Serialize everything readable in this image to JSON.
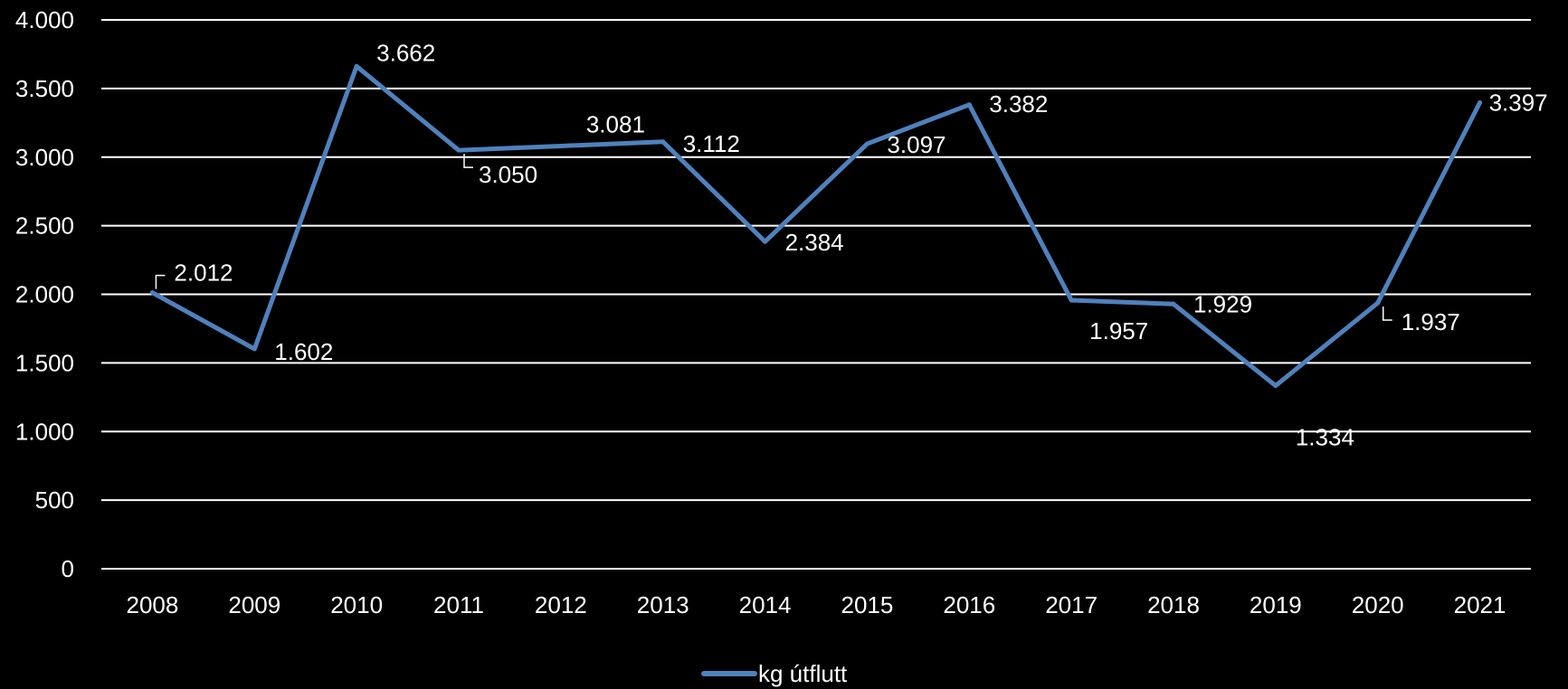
{
  "chart_data": {
    "type": "line",
    "title": "",
    "xlabel": "",
    "ylabel": "",
    "categories": [
      "2008",
      "2009",
      "2010",
      "2011",
      "2012",
      "2013",
      "2014",
      "2015",
      "2016",
      "2017",
      "2018",
      "2019",
      "2020",
      "2021"
    ],
    "series": [
      {
        "name": "kg útflutt",
        "color": "#4f81bd",
        "values": [
          2012,
          1602,
          3662,
          3050,
          3081,
          3112,
          2384,
          3097,
          3382,
          1957,
          1929,
          1334,
          1937,
          3397
        ],
        "labels": [
          "2.012",
          "1.602",
          "3.662",
          "3.050",
          "3.081",
          "3.112",
          "2.384",
          "3.097",
          "3.382",
          "1.957",
          "1.929",
          "1.334",
          "1.937",
          "3.397"
        ]
      }
    ],
    "ylim": [
      0,
      4000
    ],
    "yticks": [
      0,
      500,
      1000,
      1500,
      2000,
      2500,
      3000,
      3500,
      4000
    ],
    "ytick_labels": [
      "0",
      "500",
      "1.000",
      "1.500",
      "2.000",
      "2.500",
      "3.000",
      "3.500",
      "4.000"
    ],
    "grid": true,
    "legend_position": "bottom-center",
    "colors": {
      "background": "#000000",
      "gridline": "#ffffff",
      "text": "#ffffff"
    }
  }
}
